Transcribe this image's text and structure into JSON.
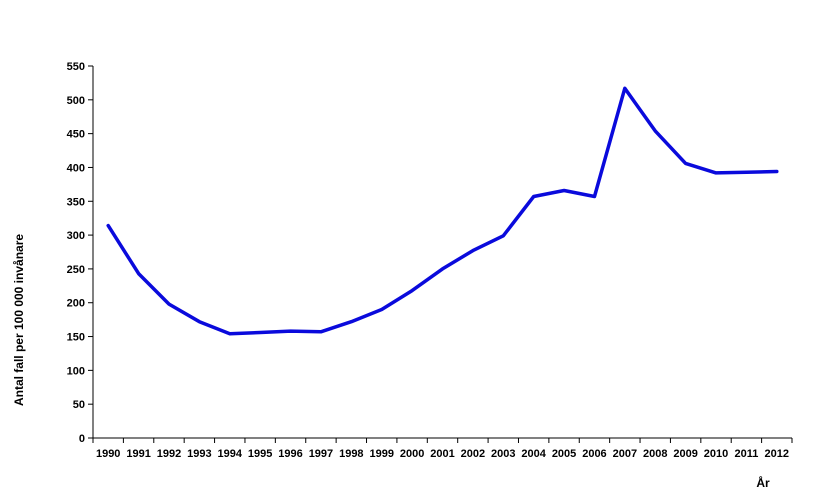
{
  "chart_data": {
    "type": "line",
    "title": "",
    "xlabel": "År",
    "ylabel": "Antal fall per 100 000 invånare",
    "ylim": [
      0,
      550
    ],
    "y_ticks": [
      0,
      50,
      100,
      150,
      200,
      250,
      300,
      350,
      400,
      450,
      500,
      550
    ],
    "grid": false,
    "legend": "none",
    "categories": [
      "1990",
      "1991",
      "1992",
      "1993",
      "1994",
      "1995",
      "1996",
      "1997",
      "1998",
      "1999",
      "2000",
      "2001",
      "2002",
      "2003",
      "2004",
      "2005",
      "2006",
      "2007",
      "2008",
      "2009",
      "2010",
      "2011",
      "2012"
    ],
    "series": [
      {
        "color": "#0a0adc",
        "values": [
          314,
          243,
          198,
          172,
          154,
          156,
          158,
          157,
          172,
          190,
          218,
          250,
          277,
          299,
          357,
          366,
          357,
          517,
          454,
          406,
          392,
          393,
          394
        ]
      }
    ]
  }
}
